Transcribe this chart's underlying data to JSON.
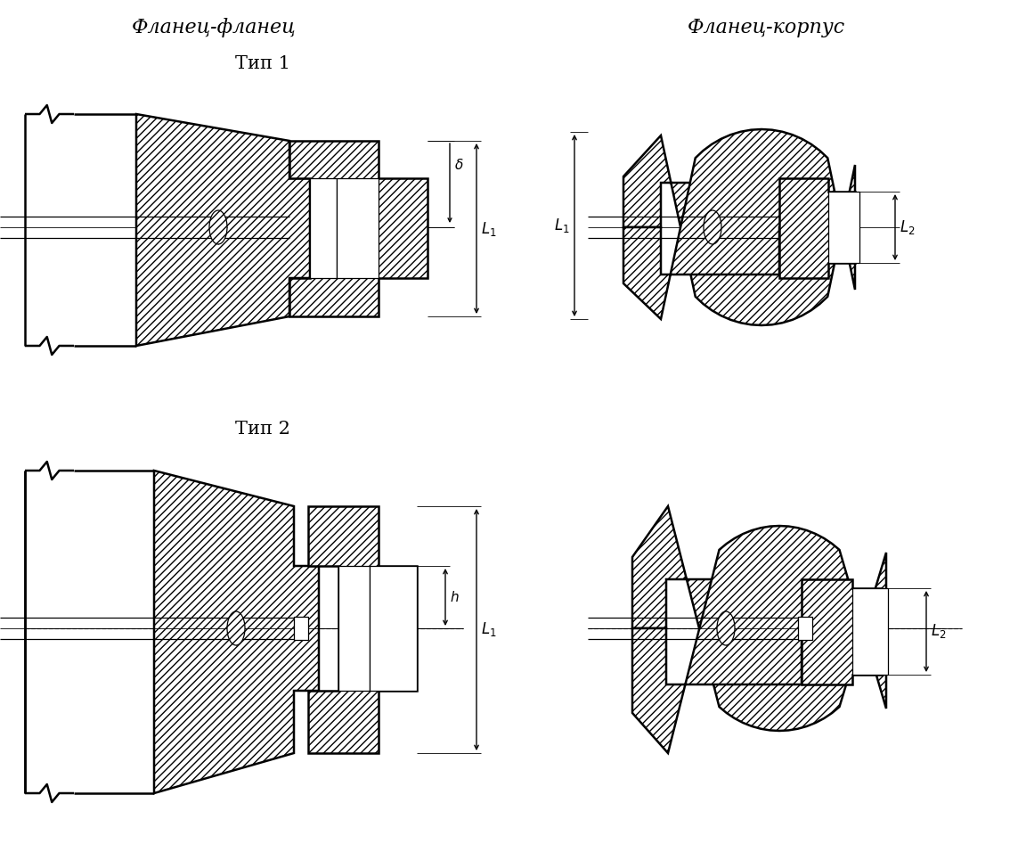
{
  "title_left": "Фланец-фланец",
  "title_right": "Фланец-корпус",
  "subtitle_type1": "Тип 1",
  "subtitle_type2": "Тип 2",
  "bg_color": "#ffffff",
  "line_color": "#000000",
  "hatch_pattern": "////",
  "lw_main": 1.8,
  "lw_thin": 0.9,
  "lw_vt": 0.6
}
